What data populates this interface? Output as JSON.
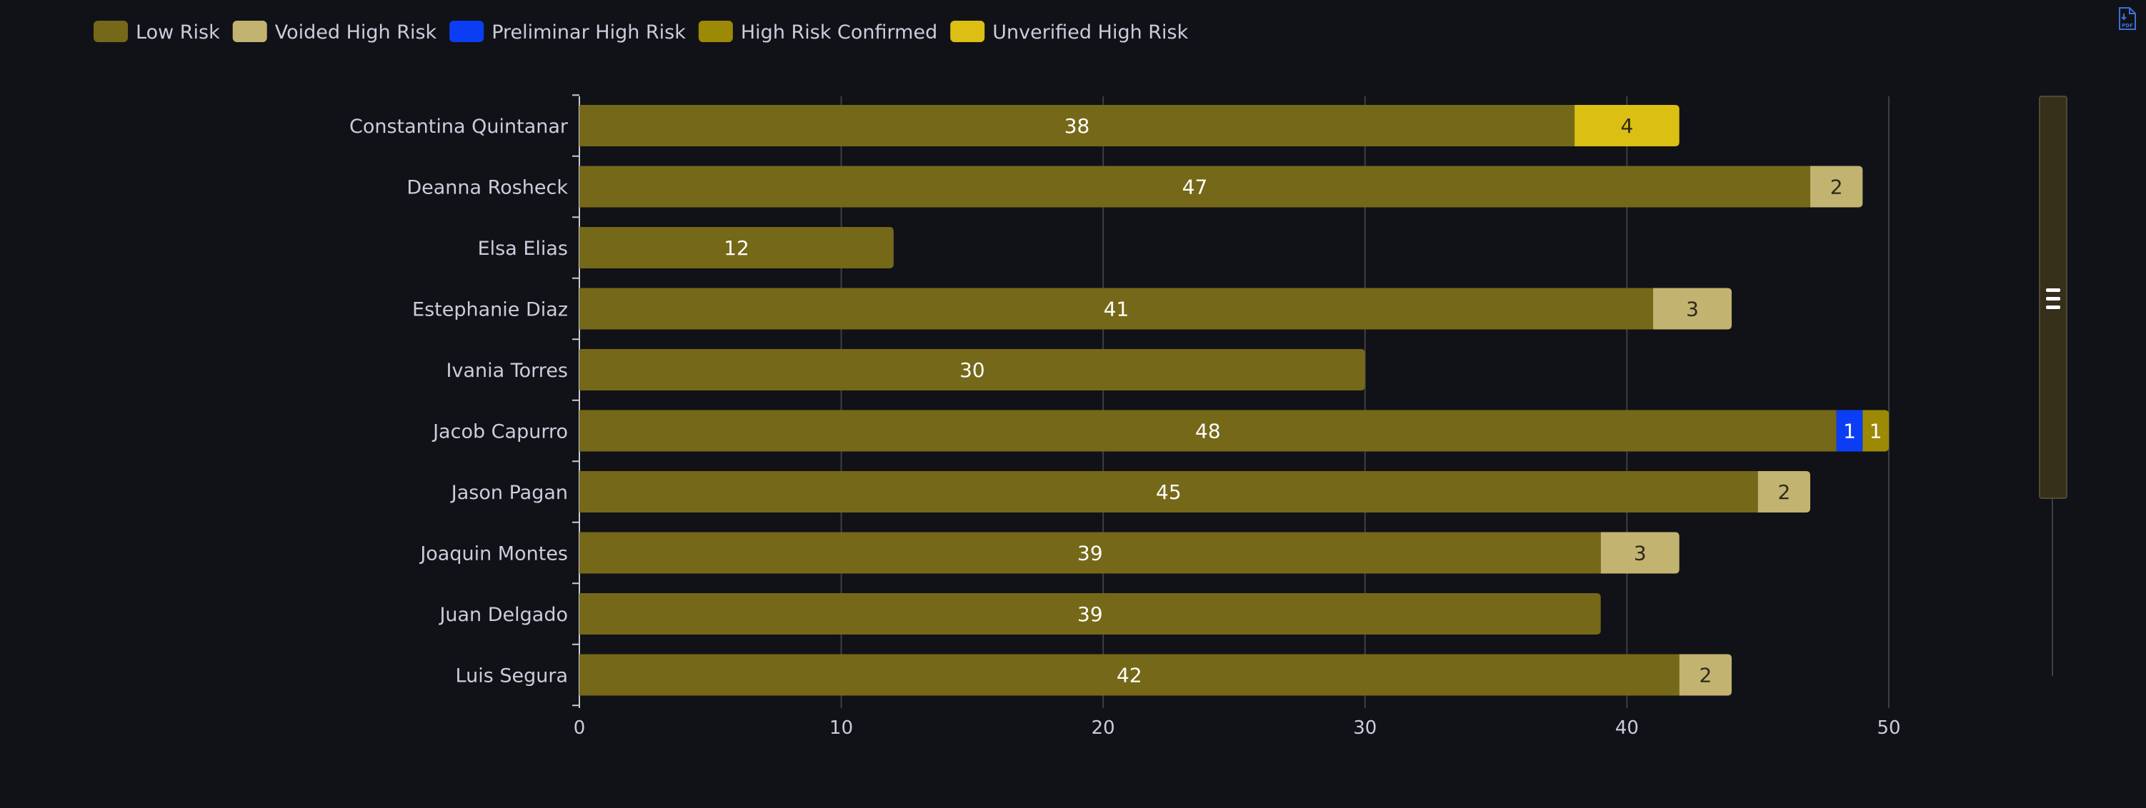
{
  "legend": [
    {
      "name": "Low Risk",
      "color": "#756818"
    },
    {
      "name": "Voided High Risk",
      "color": "#c2b370"
    },
    {
      "name": "Preliminar High Risk",
      "color": "#0b3ef4"
    },
    {
      "name": "High Risk Confirmed",
      "color": "#9c8905"
    },
    {
      "name": "Unverified High Risk",
      "color": "#dbbf13"
    }
  ],
  "chart_data": {
    "type": "bar",
    "orientation": "horizontal",
    "stacked": true,
    "categories": [
      "Constantina Quintanar",
      "Deanna Rosheck",
      "Elsa Elias",
      "Estephanie Diaz",
      "Ivania Torres",
      "Jacob Capurro",
      "Jason Pagan",
      "Joaquin Montes",
      "Juan Delgado",
      "Luis Segura"
    ],
    "series": [
      {
        "name": "Low Risk",
        "color": "#756818",
        "values": [
          38,
          47,
          12,
          41,
          30,
          48,
          45,
          39,
          39,
          42
        ]
      },
      {
        "name": "Voided High Risk",
        "color": "#c2b370",
        "values": [
          0,
          2,
          0,
          3,
          0,
          0,
          2,
          3,
          0,
          2
        ]
      },
      {
        "name": "Preliminar High Risk",
        "color": "#0b3ef4",
        "values": [
          0,
          0,
          0,
          0,
          0,
          1,
          0,
          0,
          0,
          0
        ]
      },
      {
        "name": "High Risk Confirmed",
        "color": "#9c8905",
        "values": [
          0,
          0,
          0,
          0,
          0,
          1,
          0,
          0,
          0,
          0
        ]
      },
      {
        "name": "Unverified High Risk",
        "color": "#dbbf13",
        "values": [
          4,
          0,
          0,
          0,
          0,
          0,
          0,
          0,
          0,
          0
        ]
      }
    ],
    "xlim": [
      0,
      50
    ],
    "xticks": [
      0,
      10,
      20,
      30,
      40,
      50
    ],
    "grid": true,
    "legend_position": "top-left"
  },
  "pdf_button": {
    "label": "PDF"
  }
}
